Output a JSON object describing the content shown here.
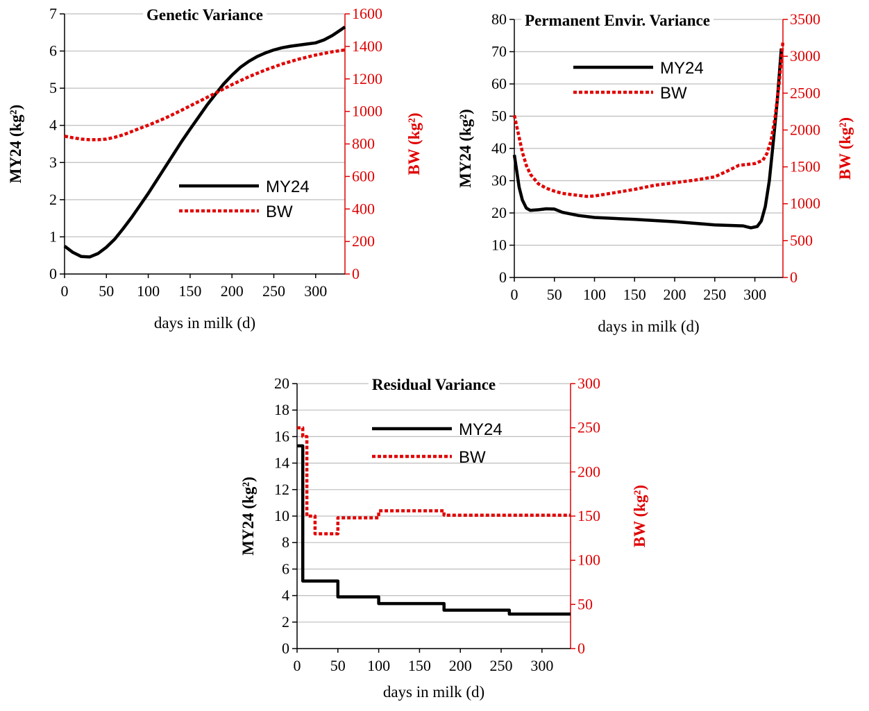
{
  "chart_data": [
    {
      "type": "line",
      "title": "Genetic Variance",
      "xlabel": "days in milk (d)",
      "ylabel": "MY24 (kg²)",
      "y2label": "BW (kg²)",
      "xlim": [
        0,
        335
      ],
      "ylim": [
        0,
        7
      ],
      "y2lim": [
        0,
        1600
      ],
      "xticks": [
        0,
        50,
        100,
        150,
        200,
        250,
        300
      ],
      "yticks": [
        0,
        1,
        2,
        3,
        4,
        5,
        6,
        7
      ],
      "y2ticks": [
        0,
        200,
        400,
        600,
        800,
        1000,
        1200,
        1400,
        1600
      ],
      "grid": true,
      "legend_position": "center-right",
      "series": [
        {
          "name": "MY24",
          "axis": "left",
          "style": "solid",
          "color": "#000000",
          "x": [
            0,
            10,
            20,
            30,
            40,
            50,
            60,
            70,
            80,
            90,
            100,
            110,
            120,
            130,
            140,
            150,
            160,
            170,
            180,
            190,
            200,
            210,
            220,
            230,
            240,
            250,
            260,
            270,
            280,
            290,
            300,
            310,
            320,
            330,
            335
          ],
          "y": [
            0.75,
            0.58,
            0.47,
            0.46,
            0.55,
            0.72,
            0.94,
            1.22,
            1.52,
            1.84,
            2.17,
            2.52,
            2.87,
            3.22,
            3.57,
            3.9,
            4.22,
            4.54,
            4.83,
            5.11,
            5.35,
            5.56,
            5.72,
            5.85,
            5.95,
            6.03,
            6.09,
            6.13,
            6.16,
            6.19,
            6.22,
            6.3,
            6.42,
            6.57,
            6.65
          ]
        },
        {
          "name": "BW",
          "axis": "right",
          "style": "dashed",
          "color": "#e00000",
          "x": [
            0,
            10,
            20,
            30,
            40,
            50,
            60,
            70,
            80,
            90,
            100,
            120,
            140,
            160,
            180,
            200,
            220,
            240,
            260,
            280,
            300,
            320,
            335
          ],
          "y": [
            848,
            838,
            830,
            826,
            826,
            830,
            841,
            856,
            876,
            896,
            915,
            958,
            1008,
            1060,
            1112,
            1165,
            1213,
            1255,
            1292,
            1322,
            1347,
            1367,
            1378
          ]
        }
      ]
    },
    {
      "type": "line",
      "title": "Permanent Envir. Variance",
      "xlabel": "days in milk (d)",
      "ylabel": "MY24 (kg²)",
      "y2label": "BW (kg²)",
      "xlim": [
        0,
        335
      ],
      "ylim": [
        0,
        80
      ],
      "y2lim": [
        0,
        3500
      ],
      "xticks": [
        0,
        50,
        100,
        150,
        200,
        250,
        300
      ],
      "yticks": [
        0,
        10,
        20,
        30,
        40,
        50,
        60,
        70,
        80
      ],
      "y2ticks": [
        0,
        500,
        1000,
        1500,
        2000,
        2500,
        3000,
        3500
      ],
      "grid": true,
      "legend_position": "top-center",
      "series": [
        {
          "name": "MY24",
          "axis": "left",
          "style": "solid",
          "color": "#000000",
          "x": [
            0,
            3,
            6,
            10,
            15,
            20,
            30,
            40,
            50,
            60,
            80,
            100,
            150,
            200,
            250,
            285,
            295,
            303,
            308,
            313,
            318,
            323,
            328,
            333
          ],
          "y": [
            38,
            33,
            28,
            24,
            21.5,
            20.8,
            21,
            21.3,
            21.2,
            20.2,
            19.2,
            18.6,
            18,
            17.3,
            16.3,
            16,
            15.4,
            15.8,
            17.5,
            22,
            30,
            42,
            55,
            71
          ]
        },
        {
          "name": "BW",
          "axis": "right",
          "style": "dashed",
          "color": "#e00000",
          "x": [
            0,
            5,
            10,
            15,
            20,
            30,
            40,
            50,
            60,
            75,
            90,
            100,
            125,
            150,
            175,
            200,
            225,
            250,
            265,
            280,
            300,
            310,
            315,
            320,
            325,
            330,
            335
          ],
          "y": [
            2200,
            1950,
            1700,
            1520,
            1400,
            1270,
            1210,
            1170,
            1140,
            1120,
            1100,
            1105,
            1150,
            1195,
            1250,
            1285,
            1320,
            1365,
            1440,
            1520,
            1545,
            1590,
            1680,
            1850,
            2150,
            2600,
            3200
          ]
        }
      ]
    },
    {
      "type": "line",
      "title": "Residual Variance",
      "xlabel": "days in milk (d)",
      "ylabel": "MY24 (kg²)",
      "y2label": "BW (kg²)",
      "xlim": [
        0,
        335
      ],
      "ylim": [
        0,
        20
      ],
      "y2lim": [
        0,
        300
      ],
      "xticks": [
        0,
        50,
        100,
        150,
        200,
        250,
        300
      ],
      "yticks": [
        0,
        2,
        4,
        6,
        8,
        10,
        12,
        14,
        16,
        18,
        20
      ],
      "y2ticks": [
        0,
        50,
        100,
        150,
        200,
        250,
        300
      ],
      "grid": true,
      "legend_position": "top-center",
      "series": [
        {
          "name": "MY24",
          "axis": "left",
          "style": "solid",
          "color": "#000000",
          "x": [
            0,
            7,
            7,
            50,
            50,
            100,
            100,
            180,
            180,
            260,
            260,
            335
          ],
          "y": [
            15.3,
            15.3,
            5.1,
            5.1,
            3.9,
            3.9,
            3.4,
            3.4,
            2.9,
            2.9,
            2.6,
            2.6
          ]
        },
        {
          "name": "BW",
          "axis": "right",
          "style": "dashed",
          "color": "#e00000",
          "x": [
            0,
            7,
            7,
            12,
            12,
            22,
            22,
            50,
            50,
            100,
            100,
            180,
            180,
            335
          ],
          "y": [
            250,
            250,
            240,
            240,
            150,
            150,
            130,
            130,
            148,
            148,
            156,
            156,
            151,
            151
          ]
        }
      ]
    }
  ]
}
